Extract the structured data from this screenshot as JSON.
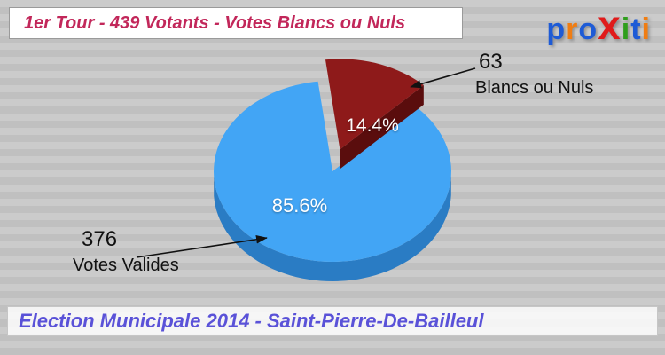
{
  "header": {
    "title": "1er Tour - 439 Votants - Votes Blancs ou Nuls",
    "color": "#c2275a"
  },
  "logo": {
    "name": "proxiti",
    "letters": [
      {
        "ch": "p",
        "color": "#1e5bd6"
      },
      {
        "ch": "r",
        "color": "#f07d12"
      },
      {
        "ch": "o",
        "color": "#1e5bd6"
      },
      {
        "ch": "x",
        "color": "#e01b1b",
        "big": true
      },
      {
        "ch": "i",
        "color": "#2f9e1c"
      },
      {
        "ch": "t",
        "color": "#1e5bd6"
      },
      {
        "ch": "i",
        "color": "#f07d12"
      }
    ]
  },
  "chart_data": {
    "type": "pie",
    "title": "1er Tour - 439 Votants - Votes Blancs ou Nuls",
    "total_votants": 439,
    "legend_position": "none",
    "slices": [
      {
        "label": "Votes Valides",
        "value": 376,
        "pct": 85.6,
        "pct_label": "85.6%",
        "color": "#42a5f5",
        "side_color": "#2a7cc4",
        "exploded": false
      },
      {
        "label": "Blancs ou Nuls",
        "value": 63,
        "pct": 14.4,
        "pct_label": "14.4%",
        "color": "#8e1a1a",
        "side_color": "#5a0d0d",
        "exploded": true
      }
    ]
  },
  "footer": {
    "text": "Election Municipale 2014 - Saint-Pierre-De-Bailleul",
    "color": "#5a52d8"
  }
}
